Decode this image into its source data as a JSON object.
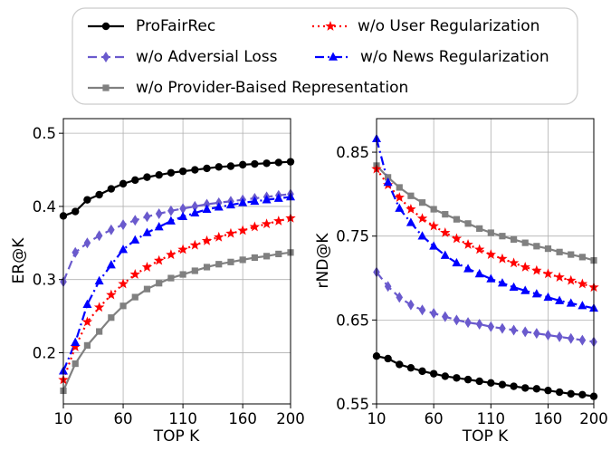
{
  "legend": [
    {
      "label": "ProFairRec",
      "series_index": 0
    },
    {
      "label": "w/o Adversial Loss",
      "series_index": 1
    },
    {
      "label": "w/o Provider-Baised Representation",
      "series_index": 2
    },
    {
      "label": "w/o User Regularization",
      "series_index": 3
    },
    {
      "label": "w/o News Regularization",
      "series_index": 4
    }
  ],
  "series_style": [
    {
      "color": "#000000",
      "dash": "",
      "marker": "circle"
    },
    {
      "color": "#6a5acd",
      "dash": "10,5",
      "marker": "diamond"
    },
    {
      "color": "#808080",
      "dash": "",
      "marker": "square"
    },
    {
      "color": "#ff0000",
      "dash": "2,4",
      "marker": "star"
    },
    {
      "color": "#0000ff",
      "dash": "10,4,2,4",
      "marker": "triangle"
    }
  ],
  "chart_data": [
    {
      "type": "line",
      "xlabel": "TOP K",
      "ylabel": "ER@K",
      "xlim": [
        10,
        200
      ],
      "ylim": [
        0.13,
        0.52
      ],
      "xticks": [
        10,
        60,
        110,
        160,
        200
      ],
      "yticks": [
        0.2,
        0.3,
        0.4,
        0.5
      ],
      "ytick_labels": [
        "0.2",
        "0.3",
        "0.4",
        "0.5"
      ],
      "grid": true,
      "x": [
        10,
        20,
        30,
        40,
        50,
        60,
        70,
        80,
        90,
        100,
        110,
        120,
        130,
        140,
        150,
        160,
        170,
        180,
        190,
        200
      ],
      "series": [
        {
          "name": "ProFairRec",
          "values": [
            0.387,
            0.393,
            0.409,
            0.416,
            0.424,
            0.431,
            0.436,
            0.44,
            0.443,
            0.446,
            0.448,
            0.45,
            0.452,
            0.454,
            0.455,
            0.457,
            0.458,
            0.459,
            0.46,
            0.461
          ]
        },
        {
          "name": "w/o Adversial Loss",
          "values": [
            0.297,
            0.337,
            0.35,
            0.36,
            0.368,
            0.375,
            0.381,
            0.386,
            0.39,
            0.394,
            0.397,
            0.4,
            0.403,
            0.405,
            0.407,
            0.409,
            0.411,
            0.413,
            0.415,
            0.417
          ]
        },
        {
          "name": "w/o Provider-Baised Representation",
          "values": [
            0.148,
            0.185,
            0.21,
            0.229,
            0.248,
            0.264,
            0.276,
            0.287,
            0.295,
            0.302,
            0.307,
            0.312,
            0.317,
            0.321,
            0.324,
            0.327,
            0.33,
            0.332,
            0.335,
            0.337
          ]
        },
        {
          "name": "w/o User Regularization",
          "values": [
            0.163,
            0.208,
            0.242,
            0.262,
            0.279,
            0.294,
            0.307,
            0.317,
            0.326,
            0.334,
            0.341,
            0.347,
            0.353,
            0.358,
            0.363,
            0.367,
            0.372,
            0.376,
            0.38,
            0.384
          ]
        },
        {
          "name": "w/o News Regularization",
          "values": [
            0.175,
            0.214,
            0.266,
            0.298,
            0.32,
            0.341,
            0.354,
            0.364,
            0.372,
            0.38,
            0.386,
            0.391,
            0.396,
            0.399,
            0.402,
            0.405,
            0.407,
            0.409,
            0.411,
            0.413
          ]
        }
      ]
    },
    {
      "type": "line",
      "xlabel": "TOP K",
      "ylabel": "rND@K",
      "xlim": [
        10,
        200
      ],
      "ylim": [
        0.55,
        0.89
      ],
      "xticks": [
        10,
        60,
        110,
        160,
        200
      ],
      "yticks": [
        0.55,
        0.65,
        0.75,
        0.85
      ],
      "ytick_labels": [
        "0.55",
        "0.65",
        "0.75",
        "0.85"
      ],
      "grid": true,
      "x": [
        10,
        20,
        30,
        40,
        50,
        60,
        70,
        80,
        90,
        100,
        110,
        120,
        130,
        140,
        150,
        160,
        170,
        180,
        190,
        200
      ],
      "series": [
        {
          "name": "ProFairRec",
          "values": [
            0.607,
            0.604,
            0.597,
            0.593,
            0.589,
            0.586,
            0.583,
            0.581,
            0.579,
            0.577,
            0.575,
            0.573,
            0.571,
            0.569,
            0.568,
            0.566,
            0.564,
            0.562,
            0.561,
            0.559
          ]
        },
        {
          "name": "w/o Adversial Loss",
          "values": [
            0.707,
            0.69,
            0.677,
            0.668,
            0.662,
            0.658,
            0.654,
            0.65,
            0.647,
            0.645,
            0.642,
            0.64,
            0.638,
            0.636,
            0.634,
            0.632,
            0.63,
            0.628,
            0.626,
            0.624
          ]
        },
        {
          "name": "w/o Provider-Baised Representation",
          "values": [
            0.834,
            0.82,
            0.808,
            0.798,
            0.79,
            0.782,
            0.776,
            0.77,
            0.765,
            0.759,
            0.754,
            0.75,
            0.746,
            0.742,
            0.738,
            0.735,
            0.731,
            0.728,
            0.725,
            0.721
          ]
        },
        {
          "name": "w/o User Regularization",
          "values": [
            0.83,
            0.811,
            0.796,
            0.782,
            0.771,
            0.762,
            0.754,
            0.747,
            0.74,
            0.734,
            0.728,
            0.723,
            0.718,
            0.713,
            0.709,
            0.705,
            0.701,
            0.697,
            0.693,
            0.689
          ]
        },
        {
          "name": "w/o News Regularization",
          "values": [
            0.866,
            0.814,
            0.783,
            0.766,
            0.75,
            0.738,
            0.727,
            0.718,
            0.711,
            0.705,
            0.699,
            0.694,
            0.689,
            0.685,
            0.681,
            0.677,
            0.673,
            0.67,
            0.667,
            0.664
          ]
        }
      ]
    }
  ]
}
